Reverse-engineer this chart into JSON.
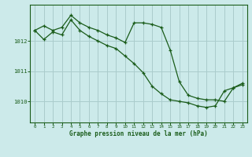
{
  "title": "Graphe pression niveau de la mer (hPa)",
  "background_color": "#cceaea",
  "grid_color": "#aacccc",
  "line_color": "#1a5c1a",
  "xlim": [
    -0.5,
    23.5
  ],
  "ylim": [
    1009.3,
    1013.2
  ],
  "yticks": [
    1010,
    1011,
    1012
  ],
  "xticks": [
    0,
    1,
    2,
    3,
    4,
    5,
    6,
    7,
    8,
    9,
    10,
    11,
    12,
    13,
    14,
    15,
    16,
    17,
    18,
    19,
    20,
    21,
    22,
    23
  ],
  "series1_x": [
    0,
    1,
    2,
    3,
    4,
    5,
    6,
    7,
    8,
    9,
    10,
    11,
    12,
    13,
    14,
    15,
    16,
    17,
    18,
    19,
    20,
    21,
    22,
    23
  ],
  "series1_y": [
    1012.35,
    1012.5,
    1012.35,
    1012.45,
    1012.85,
    1012.6,
    1012.45,
    1012.35,
    1012.2,
    1012.1,
    1011.95,
    1012.6,
    1012.6,
    1012.55,
    1012.45,
    1011.7,
    1010.65,
    1010.2,
    1010.1,
    1010.05,
    1010.05,
    1010.0,
    1010.45,
    1010.6
  ],
  "series2_x": [
    0,
    1,
    2,
    3,
    4,
    5,
    6,
    7,
    8,
    9,
    10,
    11,
    12,
    13,
    14,
    15,
    16,
    17,
    18,
    19,
    20,
    21,
    22,
    23
  ],
  "series2_y": [
    1012.35,
    1012.05,
    1012.3,
    1012.2,
    1012.7,
    1012.35,
    1012.15,
    1012.0,
    1011.85,
    1011.75,
    1011.5,
    1011.25,
    1010.95,
    1010.5,
    1010.25,
    1010.05,
    1010.0,
    1009.95,
    1009.85,
    1009.8,
    1009.85,
    1010.35,
    1010.45,
    1010.55
  ]
}
